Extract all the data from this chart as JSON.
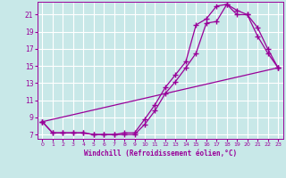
{
  "xlabel": "Windchill (Refroidissement éolien,°C)",
  "bg_color": "#c8e8e8",
  "grid_color": "#ffffff",
  "line_color": "#990099",
  "xlim": [
    -0.5,
    23.5
  ],
  "ylim": [
    6.5,
    22.5
  ],
  "yticks": [
    7,
    9,
    11,
    13,
    15,
    17,
    19,
    21
  ],
  "xticks": [
    0,
    1,
    2,
    3,
    4,
    5,
    6,
    7,
    8,
    9,
    10,
    11,
    12,
    13,
    14,
    15,
    16,
    17,
    18,
    19,
    20,
    21,
    22,
    23
  ],
  "line1_x": [
    0,
    1,
    2,
    3,
    4,
    5,
    6,
    7,
    8,
    9,
    10,
    11,
    12,
    13,
    14,
    15,
    16,
    17,
    18,
    19,
    20,
    21,
    22,
    23
  ],
  "line1_y": [
    8.5,
    7.2,
    7.2,
    7.2,
    7.2,
    7.0,
    7.0,
    7.0,
    7.2,
    7.2,
    8.8,
    10.5,
    12.5,
    14.0,
    15.5,
    19.8,
    20.5,
    22.0,
    22.2,
    21.5,
    21.0,
    18.5,
    16.5,
    14.8
  ],
  "line2_x": [
    0,
    1,
    2,
    3,
    4,
    5,
    6,
    7,
    8,
    9,
    10,
    11,
    12,
    13,
    14,
    15,
    16,
    17,
    18,
    19,
    20,
    21,
    22,
    23
  ],
  "line2_y": [
    8.5,
    7.2,
    7.2,
    7.2,
    7.2,
    7.0,
    7.0,
    7.0,
    7.0,
    7.0,
    8.2,
    9.8,
    11.8,
    13.2,
    14.8,
    16.5,
    20.0,
    20.2,
    22.2,
    21.0,
    21.0,
    19.5,
    17.0,
    14.8
  ],
  "line3_x": [
    0,
    23
  ],
  "line3_y": [
    8.5,
    14.8
  ]
}
